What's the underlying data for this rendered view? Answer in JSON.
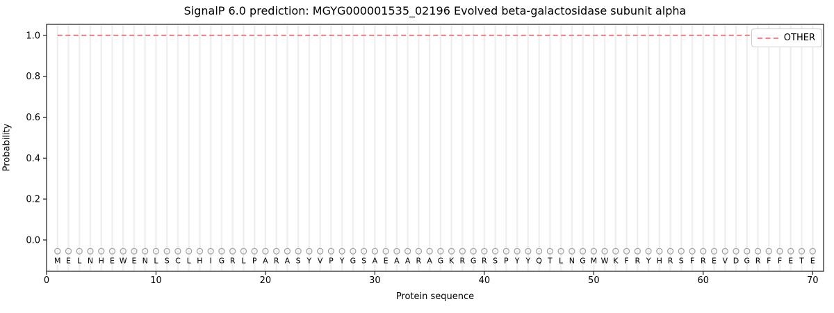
{
  "chart_data": {
    "type": "line",
    "title": "SignalP 6.0 prediction: MGYG000001535_02196 Evolved beta-galactosidase subunit alpha",
    "xlabel": "Protein sequence",
    "ylabel": "Probability",
    "xlim": [
      0,
      71
    ],
    "ylim": [
      -0.153,
      1.054
    ],
    "xticks": [
      0,
      10,
      20,
      30,
      40,
      50,
      60,
      70
    ],
    "yticks": [
      0.0,
      0.2,
      0.4,
      0.6,
      0.8,
      1.0
    ],
    "grid": "vertical-line-per-residue",
    "grid_color": "#efefef",
    "spine_color": "#1a1a1a",
    "legend": {
      "position": "top-right",
      "entries": [
        {
          "label": "OTHER",
          "color": "#ef8888",
          "style": "dashed"
        }
      ]
    },
    "sequence": "MELNHEWENLSCLHIGRLPARASYVPYGSAEAARAGKRGRSPYYQTLNGMWKFRYHRSFREVDGRFFETE",
    "series": [
      {
        "name": "OTHER",
        "color": "#ef8888",
        "style": "dashed",
        "x": [
          1,
          2,
          3,
          4,
          5,
          6,
          7,
          8,
          9,
          10,
          11,
          12,
          13,
          14,
          15,
          16,
          17,
          18,
          19,
          20,
          21,
          22,
          23,
          24,
          25,
          26,
          27,
          28,
          29,
          30,
          31,
          32,
          33,
          34,
          35,
          36,
          37,
          38,
          39,
          40,
          41,
          42,
          43,
          44,
          45,
          46,
          47,
          48,
          49,
          50,
          51,
          52,
          53,
          54,
          55,
          56,
          57,
          58,
          59,
          60,
          61,
          62,
          63,
          64,
          65,
          66,
          67,
          68,
          69,
          70
        ],
        "values": [
          1.0,
          1.0,
          1.0,
          1.0,
          1.0,
          1.0,
          1.0,
          1.0,
          1.0,
          1.0,
          1.0,
          1.0,
          1.0,
          1.0,
          1.0,
          1.0,
          1.0,
          1.0,
          1.0,
          1.0,
          1.0,
          1.0,
          1.0,
          1.0,
          1.0,
          1.0,
          1.0,
          1.0,
          1.0,
          1.0,
          1.0,
          1.0,
          1.0,
          1.0,
          1.0,
          1.0,
          1.0,
          1.0,
          1.0,
          1.0,
          1.0,
          1.0,
          1.0,
          1.0,
          1.0,
          1.0,
          1.0,
          1.0,
          1.0,
          1.0,
          1.0,
          1.0,
          1.0,
          1.0,
          1.0,
          1.0,
          1.0,
          1.0,
          1.0,
          1.0,
          1.0,
          1.0,
          1.0,
          1.0,
          1.0,
          1.0,
          1.0,
          1.0,
          1.0,
          1.0
        ]
      }
    ],
    "markers": {
      "shape": "open-circle",
      "color": "#9c9c9c",
      "y": -0.055
    },
    "residue_label_y": -0.1
  }
}
